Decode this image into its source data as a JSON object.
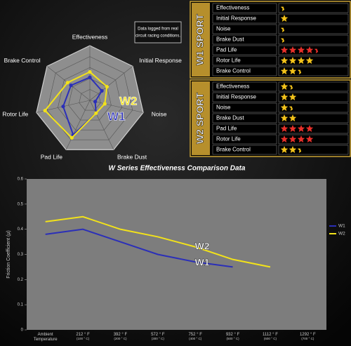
{
  "chart_data": [
    {
      "type": "radar",
      "categories": [
        "Effectiveness",
        "Initial Response",
        "Noise",
        "Brake Dust",
        "Pad Life",
        "Rotor Life",
        "Brake Control"
      ],
      "rlim": [
        0,
        5
      ],
      "note": [
        "Data logged from real",
        "circuit racing conditions."
      ],
      "annotations": [
        {
          "text": "W2",
          "color": "#f2e21a"
        },
        {
          "text": "W1",
          "color": "#2b2fb8"
        }
      ],
      "series": [
        {
          "name": "W1",
          "color": "#2b2fb8",
          "values": [
            2.1,
            1.4,
            0.5,
            1.3,
            3.5,
            2.5,
            2.2
          ]
        },
        {
          "name": "W2",
          "color": "#f2e21a",
          "values": [
            2.6,
            2.0,
            1.4,
            1.3,
            3.8,
            4.2,
            2.6
          ]
        }
      ]
    },
    {
      "type": "line",
      "title": "W Series Effectiveness Comparison Data",
      "y_label": "Friction Coefficient (μ)",
      "categories": [
        "Ambient Temperature",
        "212 ° F (100 ° C)",
        "392 ° F (200 ° C)",
        "572 ° F (300 ° C)",
        "752 ° F (400 ° C)",
        "932 ° F (500 ° C)",
        "1112 ° F (600 ° C)",
        "1292 ° F (700 ° C)"
      ],
      "ylim": [
        0,
        0.6
      ],
      "yticks": [
        0,
        0.1,
        0.2,
        0.3,
        0.4,
        0.5,
        0.6
      ],
      "legend": "right",
      "annotations": [
        "W2",
        "W1"
      ],
      "series": [
        {
          "name": "W1",
          "color": "#2b2fb8",
          "values": [
            0.38,
            0.4,
            0.35,
            0.3,
            0.27,
            0.25,
            null,
            null
          ]
        },
        {
          "name": "W2",
          "color": "#f2e21a",
          "values": [
            0.43,
            0.45,
            0.4,
            0.37,
            0.33,
            0.28,
            0.25,
            null
          ]
        }
      ]
    }
  ],
  "ratings": [
    {
      "title": "W1 SPORT",
      "rows": [
        {
          "label": "Effectiveness",
          "stars": 0.5,
          "color": "#f2c21a"
        },
        {
          "label": "Initial Response",
          "stars": 1,
          "color": "#f2c21a"
        },
        {
          "label": "Noise",
          "stars": 0.5,
          "color": "#f2c21a"
        },
        {
          "label": "Brake Dust",
          "stars": 0.5,
          "color": "#f2c21a"
        },
        {
          "label": "Pad Life",
          "stars": 4.5,
          "color": "#e8302a"
        },
        {
          "label": "Rotor Life",
          "stars": 4,
          "color": "#f2c21a"
        },
        {
          "label": "Brake Control",
          "stars": 2.5,
          "color": "#f2c21a"
        }
      ]
    },
    {
      "title": "W2 SPORT",
      "rows": [
        {
          "label": "Effectiveness",
          "stars": 1.5,
          "color": "#f2c21a"
        },
        {
          "label": "Initial Response",
          "stars": 2,
          "color": "#f2c21a"
        },
        {
          "label": "Noise",
          "stars": 1.5,
          "color": "#f2c21a"
        },
        {
          "label": "Brake Dust",
          "stars": 2,
          "color": "#f2c21a"
        },
        {
          "label": "Pad Life",
          "stars": 4,
          "color": "#e8302a"
        },
        {
          "label": "Rotor Life",
          "stars": 4,
          "color": "#e8302a"
        },
        {
          "label": "Brake Control",
          "stars": 2.5,
          "color": "#f2c21a"
        }
      ]
    }
  ]
}
